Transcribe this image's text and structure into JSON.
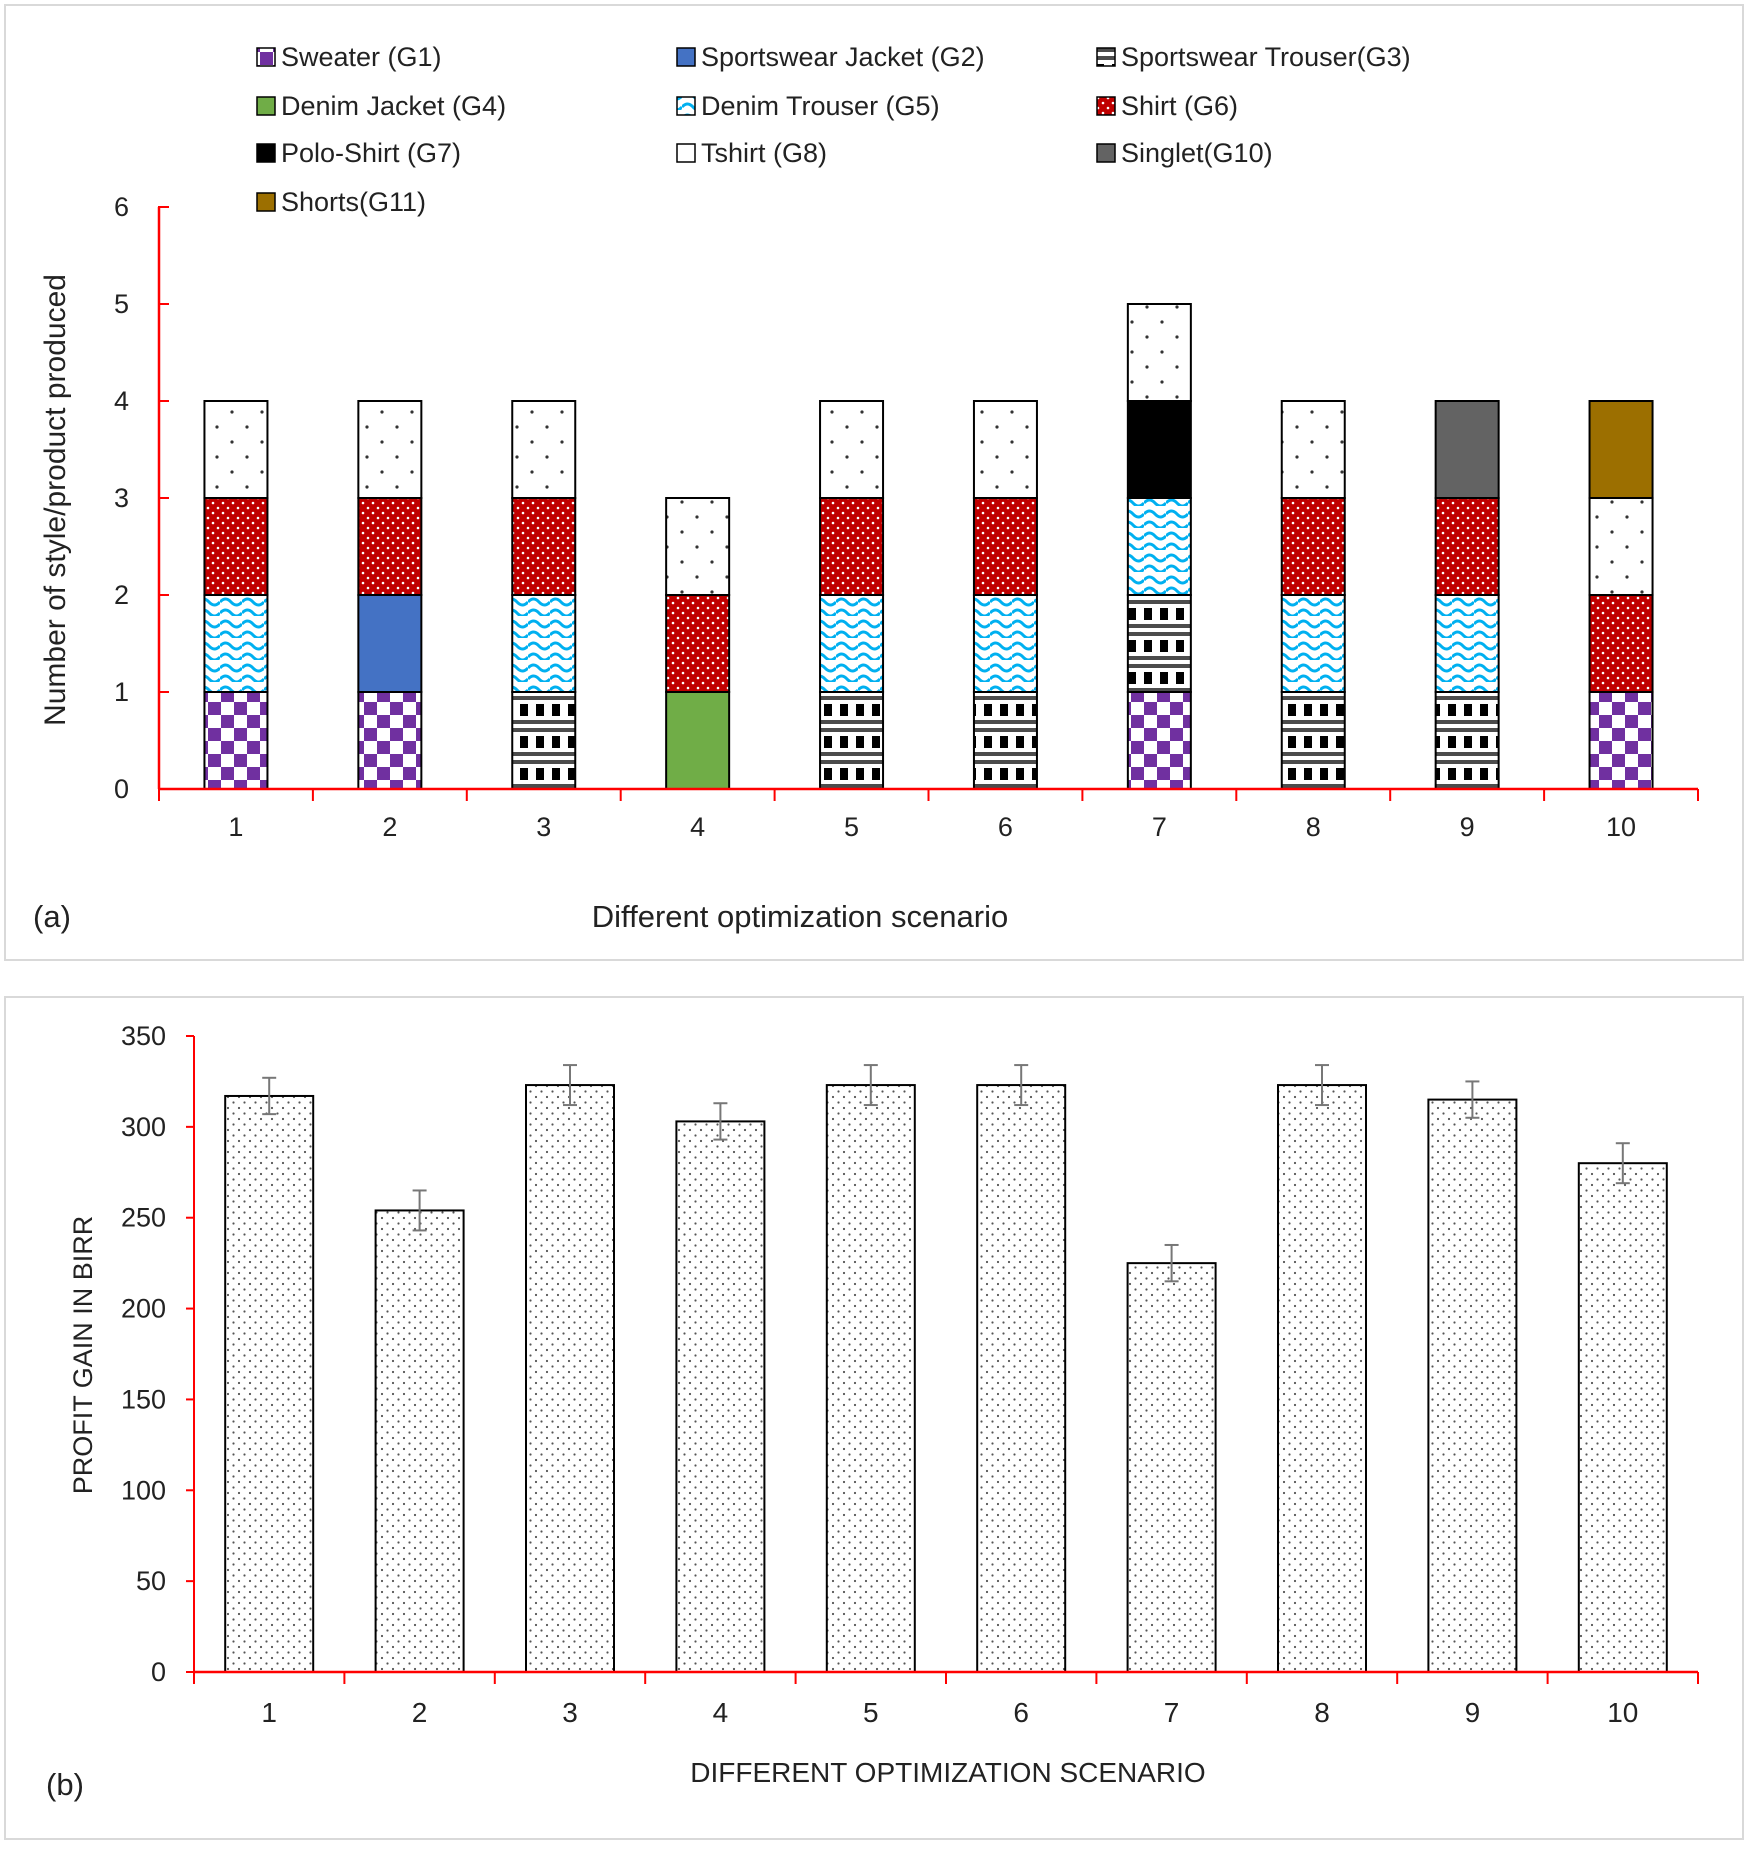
{
  "chart_data": [
    {
      "type": "bar",
      "stacked": true,
      "panel_label": "(a)",
      "xlabel": "Different optimization scenario",
      "ylabel": "Number of style/product produced",
      "ylim": [
        0,
        6
      ],
      "yticks": [
        "0",
        "1",
        "2",
        "3",
        "4",
        "5",
        "6"
      ],
      "categories": [
        "1",
        "2",
        "3",
        "4",
        "5",
        "6",
        "7",
        "8",
        "9",
        "10"
      ],
      "legend_placement": "top",
      "legend": [
        {
          "key": "G1",
          "label": "Sweater (G1)",
          "pattern": "checker-purple",
          "color": "#7030a0"
        },
        {
          "key": "G2",
          "label": "Sportswear Jacket (G2)",
          "pattern": "solid",
          "color": "#4472c4"
        },
        {
          "key": "G3",
          "label": "Sportswear Trouser(G3)",
          "pattern": "checker-black",
          "color": "#000000"
        },
        {
          "key": "G4",
          "label": "Denim Jacket (G4)",
          "pattern": "solid",
          "color": "#70ad47"
        },
        {
          "key": "G5",
          "label": "Denim Trouser (G5)",
          "pattern": "wave-cyan",
          "color": "#00b0f0"
        },
        {
          "key": "G6",
          "label": "Shirt (G6)",
          "pattern": "dots-red",
          "color": "#c00000"
        },
        {
          "key": "G7",
          "label": "Polo-Shirt (G7)",
          "pattern": "solid",
          "color": "#000000"
        },
        {
          "key": "G8",
          "label": "Tshirt (G8)",
          "pattern": "dots-white",
          "color": "#ffffff"
        },
        {
          "key": "G10",
          "label": "Singlet(G10)",
          "pattern": "solid",
          "color": "#636363"
        },
        {
          "key": "G11",
          "label": "Shorts(G11)",
          "pattern": "solid",
          "color": "#9c6f00"
        }
      ],
      "stacks": [
        [
          "G1",
          "G5",
          "G6",
          "G8"
        ],
        [
          "G1",
          "G2",
          "G6",
          "G8"
        ],
        [
          "G3",
          "G5",
          "G6",
          "G8"
        ],
        [
          "G4",
          "G6",
          "G8"
        ],
        [
          "G3",
          "G5",
          "G6",
          "G8"
        ],
        [
          "G3",
          "G5",
          "G6",
          "G8"
        ],
        [
          "G1",
          "G3",
          "G5",
          "G7",
          "G8"
        ],
        [
          "G3",
          "G5",
          "G6",
          "G8"
        ],
        [
          "G3",
          "G5",
          "G6",
          "G10"
        ],
        [
          "G1",
          "G6",
          "G8",
          "G11"
        ]
      ]
    },
    {
      "type": "bar",
      "panel_label": "(b)",
      "xlabel": "DIFFERENT OPTIMIZATION SCENARIO",
      "ylabel": "PROFIT GAIN IN BIRR",
      "ylim": [
        0,
        350
      ],
      "yticks": [
        "0",
        "50",
        "100",
        "150",
        "200",
        "250",
        "300",
        "350"
      ],
      "categories": [
        "1",
        "2",
        "3",
        "4",
        "5",
        "6",
        "7",
        "8",
        "9",
        "10"
      ],
      "values": [
        317,
        254,
        323,
        303,
        323,
        323,
        225,
        323,
        315,
        280
      ],
      "error": [
        10,
        11,
        11,
        10,
        11,
        11,
        10,
        11,
        10,
        11
      ],
      "bar_pattern": "dots-white"
    }
  ]
}
